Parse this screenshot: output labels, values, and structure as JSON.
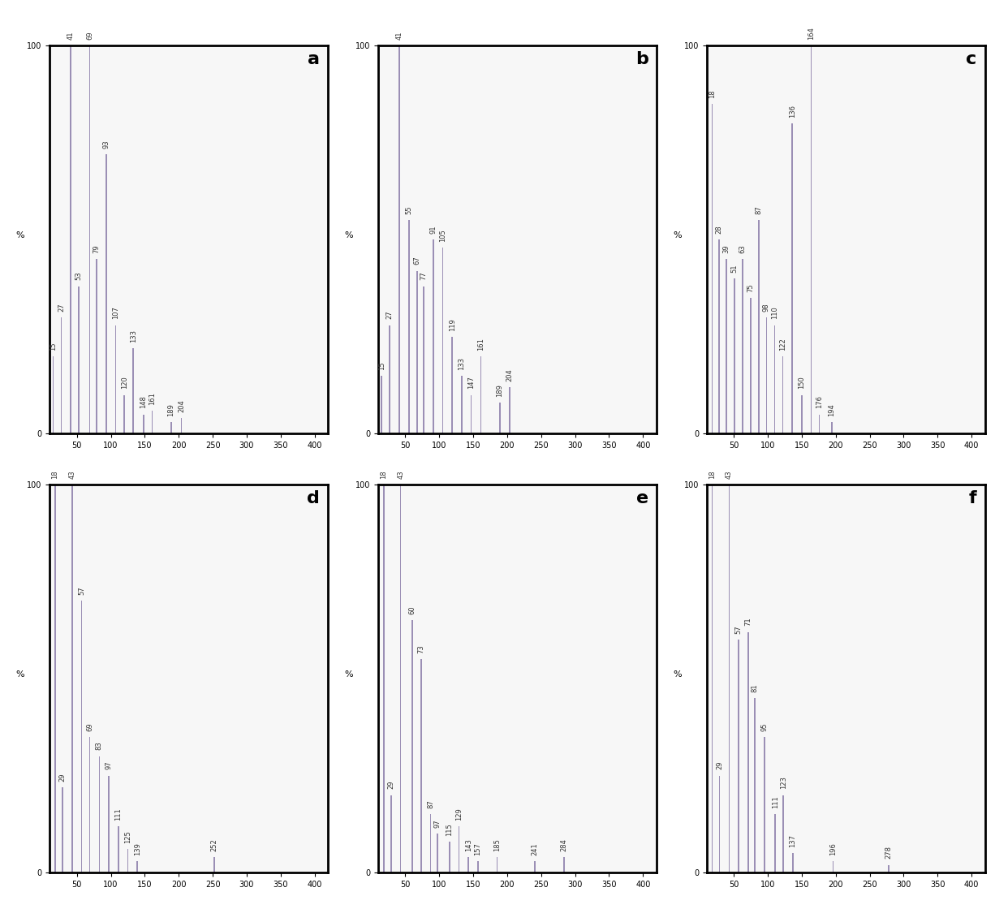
{
  "chart_data": [
    {
      "type": "bar",
      "title": "a",
      "ylabel": "%",
      "color": "#9b8fb5",
      "data_labels": true,
      "x": [
        15,
        27,
        41,
        53,
        69,
        79,
        93,
        107,
        120,
        133,
        148,
        161,
        189,
        204
      ],
      "values": [
        20,
        30,
        100,
        38,
        100,
        45,
        72,
        28,
        10,
        22,
        5,
        6,
        3,
        4
      ],
      "xlim": [
        10,
        420
      ],
      "xticks": [
        50,
        100,
        150,
        200,
        250,
        300,
        350,
        400
      ],
      "ylim": [
        0,
        100
      ],
      "yticks": [
        0,
        100
      ]
    },
    {
      "type": "bar",
      "title": "b",
      "ylabel": "%",
      "color": "#9b8fb5",
      "data_labels": true,
      "x": [
        15,
        27,
        41,
        55,
        67,
        77,
        91,
        105,
        119,
        133,
        147,
        161,
        189,
        204
      ],
      "values": [
        15,
        28,
        100,
        55,
        42,
        38,
        50,
        48,
        25,
        15,
        10,
        20,
        8,
        12
      ],
      "xlim": [
        10,
        420
      ],
      "xticks": [
        50,
        100,
        150,
        200,
        250,
        300,
        350,
        400
      ],
      "ylim": [
        0,
        100
      ],
      "yticks": [
        0,
        100
      ]
    },
    {
      "type": "bar",
      "title": "c",
      "ylabel": "%",
      "color": "#9b8fb5",
      "data_labels": true,
      "x": [
        18,
        28,
        39,
        51,
        63,
        75,
        87,
        98,
        110,
        122,
        136,
        150,
        164,
        176,
        194
      ],
      "values": [
        85,
        50,
        45,
        40,
        45,
        35,
        55,
        30,
        28,
        20,
        80,
        10,
        100,
        5,
        3
      ],
      "xlim": [
        10,
        420
      ],
      "xticks": [
        50,
        100,
        150,
        200,
        250,
        300,
        350,
        400
      ],
      "ylim": [
        0,
        100
      ],
      "yticks": [
        0,
        100
      ]
    },
    {
      "type": "bar",
      "title": "d",
      "ylabel": "%",
      "color": "#9b8fb5",
      "data_labels": true,
      "x": [
        18,
        29,
        43,
        57,
        69,
        83,
        97,
        111,
        125,
        139,
        252
      ],
      "values": [
        100,
        22,
        100,
        70,
        35,
        30,
        25,
        12,
        6,
        3,
        4
      ],
      "xlim": [
        10,
        420
      ],
      "xticks": [
        50,
        100,
        150,
        200,
        250,
        300,
        350,
        400
      ],
      "ylim": [
        0,
        100
      ],
      "yticks": [
        0,
        100
      ]
    },
    {
      "type": "bar",
      "title": "e",
      "ylabel": "%",
      "color": "#9b8fb5",
      "data_labels": true,
      "x": [
        18,
        29,
        43,
        60,
        73,
        87,
        97,
        115,
        129,
        143,
        157,
        185,
        241,
        284
      ],
      "values": [
        100,
        20,
        100,
        65,
        55,
        15,
        10,
        8,
        12,
        4,
        3,
        4,
        3,
        4
      ],
      "xlim": [
        10,
        420
      ],
      "xticks": [
        50,
        100,
        150,
        200,
        250,
        300,
        350,
        400
      ],
      "ylim": [
        0,
        100
      ],
      "yticks": [
        0,
        100
      ]
    },
    {
      "type": "bar",
      "title": "f",
      "ylabel": "%",
      "color": "#9b8fb5",
      "data_labels": true,
      "x": [
        18,
        29,
        43,
        57,
        71,
        81,
        95,
        111,
        123,
        137,
        196,
        278
      ],
      "values": [
        100,
        25,
        100,
        60,
        62,
        45,
        35,
        15,
        20,
        5,
        3,
        2
      ],
      "xlim": [
        10,
        420
      ],
      "xticks": [
        50,
        100,
        150,
        200,
        250,
        300,
        350,
        400
      ],
      "ylim": [
        0,
        100
      ],
      "yticks": [
        0,
        100
      ]
    }
  ]
}
